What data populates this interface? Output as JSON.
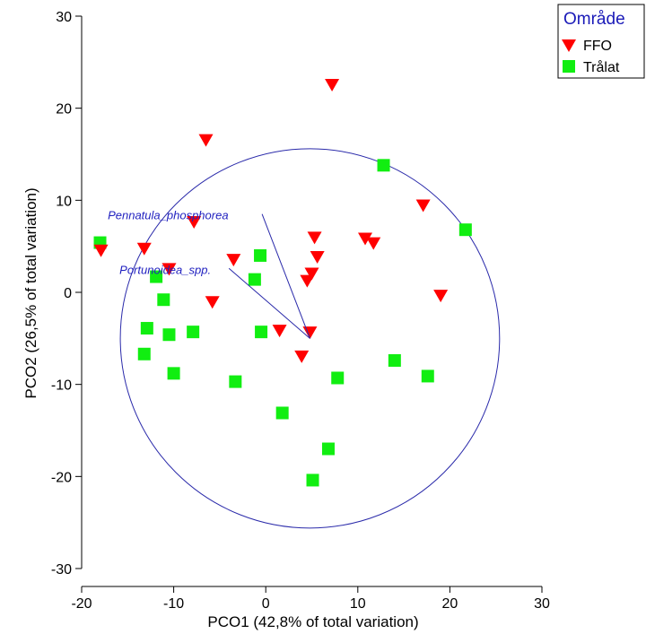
{
  "chart_data": {
    "type": "scatter",
    "xlabel": "PCO1 (42,8% of total variation)",
    "ylabel": "PCO2 (26,5% of total variation)",
    "xlim": [
      -20,
      30
    ],
    "ylim": [
      -30,
      30
    ],
    "x_ticks": [
      -20,
      -10,
      0,
      10,
      20,
      30
    ],
    "y_ticks": [
      -30,
      -20,
      -10,
      0,
      10,
      20,
      30
    ],
    "x_tick_labels": [
      "-20",
      "-10",
      "0",
      "10",
      "20",
      "30"
    ],
    "y_tick_labels": [
      "-30",
      "-20",
      "-10",
      "0",
      "10",
      "20",
      "30"
    ],
    "grid": false,
    "legend": {
      "title": "Område",
      "position": "top-right",
      "entries": [
        "FFO",
        "Trålat"
      ]
    },
    "series": [
      {
        "name": "FFO",
        "marker": "triangle-down",
        "color": "#ff0000",
        "points": [
          [
            -17.9,
            4.5
          ],
          [
            -13.2,
            4.7
          ],
          [
            -10.5,
            2.5
          ],
          [
            -7.8,
            7.6
          ],
          [
            -6.5,
            16.5
          ],
          [
            -5.8,
            -1.1
          ],
          [
            -3.5,
            3.5
          ],
          [
            1.5,
            -4.2
          ],
          [
            3.9,
            -7.0
          ],
          [
            4.5,
            1.2
          ],
          [
            4.8,
            -4.4
          ],
          [
            5.0,
            2.0
          ],
          [
            5.3,
            5.9
          ],
          [
            5.6,
            3.8
          ],
          [
            7.2,
            22.5
          ],
          [
            10.8,
            5.8
          ],
          [
            11.7,
            5.3
          ],
          [
            17.1,
            9.4
          ],
          [
            19.0,
            -0.4
          ]
        ]
      },
      {
        "name": "Trålat",
        "marker": "square",
        "color": "#11ee11",
        "points": [
          [
            -18.0,
            5.4
          ],
          [
            -13.2,
            -6.7
          ],
          [
            -12.9,
            -3.9
          ],
          [
            -11.9,
            1.7
          ],
          [
            -11.1,
            -0.8
          ],
          [
            -10.5,
            -4.6
          ],
          [
            -10.0,
            -8.8
          ],
          [
            -7.9,
            -4.3
          ],
          [
            -3.3,
            -9.7
          ],
          [
            -1.2,
            1.4
          ],
          [
            -0.6,
            4.0
          ],
          [
            -0.5,
            -4.3
          ],
          [
            1.8,
            -13.1
          ],
          [
            5.1,
            -20.4
          ],
          [
            6.8,
            -17.0
          ],
          [
            7.8,
            -9.3
          ],
          [
            12.8,
            13.8
          ],
          [
            14.0,
            -7.4
          ],
          [
            17.6,
            -9.1
          ],
          [
            21.7,
            6.8
          ]
        ]
      }
    ],
    "circle": {
      "center": [
        4.8,
        -5.0
      ],
      "radius": 20.6,
      "color": "#2a2aaa"
    },
    "vectors": [
      {
        "label": "Pennatula_phosphorea",
        "x": -5.2,
        "y": 13.5
      },
      {
        "label": "Portunoidea_spp.",
        "x": -8.8,
        "y": 7.6
      }
    ]
  }
}
